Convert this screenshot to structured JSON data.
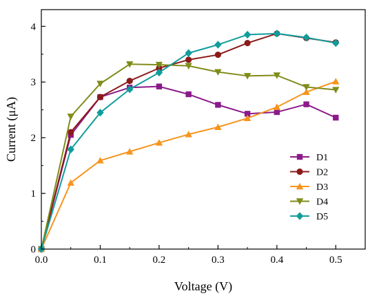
{
  "chart_data": {
    "type": "line",
    "title": "",
    "xlabel": "Voltage (V)",
    "ylabel": "Current (μA)",
    "xlim": [
      0,
      0.55
    ],
    "ylim": [
      0,
      4.3
    ],
    "xticks": [
      "0.0",
      "0.1",
      "0.2",
      "0.3",
      "0.4",
      "0.5"
    ],
    "yticks": [
      "0",
      "1",
      "2",
      "3",
      "4"
    ],
    "grid": false,
    "legend_position": "lower-right",
    "x": [
      0,
      0.05,
      0.1,
      0.15,
      0.2,
      0.25,
      0.3,
      0.35,
      0.4,
      0.45,
      0.5
    ],
    "series": [
      {
        "name": "D1",
        "color": "#8B1A8B",
        "marker": "square",
        "values": [
          0,
          2.05,
          2.73,
          2.9,
          2.92,
          2.78,
          2.59,
          2.43,
          2.46,
          2.6,
          2.36
        ]
      },
      {
        "name": "D2",
        "color": "#8B1A1A",
        "marker": "circle",
        "values": [
          0,
          2.1,
          2.73,
          3.02,
          3.25,
          3.4,
          3.49,
          3.7,
          3.87,
          3.79,
          3.71
        ]
      },
      {
        "name": "D3",
        "color": "#F7941D",
        "marker": "triangle-up",
        "values": [
          0,
          1.19,
          1.59,
          1.75,
          1.91,
          2.06,
          2.19,
          2.35,
          2.55,
          2.82,
          3.01
        ]
      },
      {
        "name": "D4",
        "color": "#7F8C1A",
        "marker": "triangle-down",
        "values": [
          0,
          2.38,
          2.97,
          3.32,
          3.31,
          3.29,
          3.18,
          3.11,
          3.12,
          2.91,
          2.86
        ]
      },
      {
        "name": "D5",
        "color": "#119C9C",
        "marker": "diamond",
        "values": [
          0,
          1.79,
          2.45,
          2.87,
          3.17,
          3.52,
          3.67,
          3.85,
          3.87,
          3.8,
          3.7
        ]
      }
    ]
  }
}
